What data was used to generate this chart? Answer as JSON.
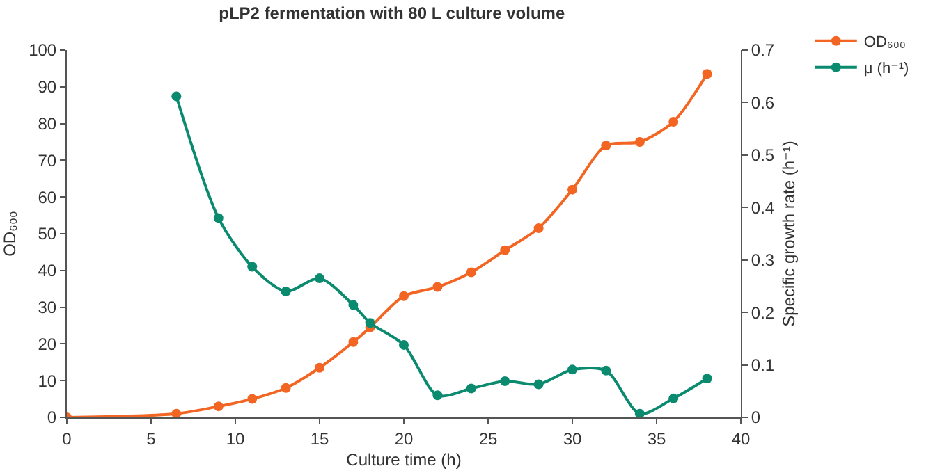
{
  "chart_data": {
    "type": "line",
    "title": "pLP2 fermentation with 80 L culture volume",
    "xlabel": "Culture time (h)",
    "ylabel": "OD₆₀₀",
    "y2label": "Specific growth rate (h⁻¹)",
    "series": [
      {
        "name": "OD₆₀₀",
        "color": "#f26522",
        "x": [
          0,
          6.5,
          9,
          11,
          13,
          15,
          17,
          18,
          20,
          22,
          24,
          26,
          28,
          30,
          32,
          34,
          36,
          38
        ],
        "values": [
          0,
          1,
          3,
          5,
          8,
          13.5,
          20.5,
          24.5,
          33,
          35.5,
          39.5,
          45.5,
          51.5,
          62,
          74,
          75,
          80.5,
          93.5
        ]
      },
      {
        "name": "μ (h⁻¹)",
        "color": "#0a8a6e",
        "axis": "y2",
        "x": [
          6.5,
          9,
          11,
          13,
          15,
          17,
          18,
          20,
          22,
          24,
          26,
          28,
          30,
          32,
          34,
          36,
          38
        ],
        "values": [
          0.612,
          0.38,
          0.287,
          0.24,
          0.265,
          0.214,
          0.18,
          0.138,
          0.042,
          0.055,
          0.069,
          0.063,
          0.091,
          0.089,
          0.007,
          0.036,
          0.074
        ]
      }
    ],
    "xlim": [
      0,
      40
    ],
    "xticks": [
      0,
      5,
      10,
      15,
      20,
      25,
      30,
      35,
      40
    ],
    "ylim": [
      0,
      100
    ],
    "yticks": [
      0,
      10,
      20,
      30,
      40,
      50,
      60,
      70,
      80,
      90,
      100
    ],
    "y2lim": [
      0,
      0.7
    ],
    "y2ticks": [
      0,
      0.1,
      0.2,
      0.3,
      0.4,
      0.5,
      0.6,
      0.7
    ],
    "grid": false,
    "legend": "top right",
    "marker": "circle",
    "line_style": "solid"
  }
}
